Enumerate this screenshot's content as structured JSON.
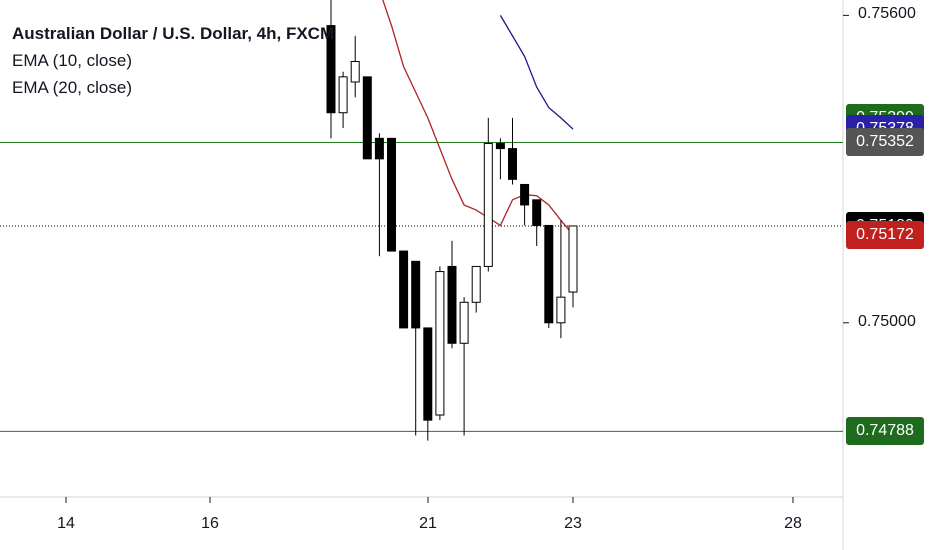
{
  "legend": {
    "title": "Australian Dollar / U.S. Dollar, 4h, FXCM",
    "ema10": "EMA (10, close)",
    "ema20": "EMA (20, close)"
  },
  "chart_data": {
    "type": "candlestick",
    "symbol": "AUD/USD",
    "timeframe": "4h",
    "ylim": [
      0.7466,
      0.7563
    ],
    "y_ticks": [
      "0.75600",
      "0.75000"
    ],
    "x_ticks": [
      "14",
      "16",
      "21",
      "23",
      "28"
    ],
    "candles": [
      {
        "o": 0.7558,
        "h": 0.7568,
        "l": 0.7536,
        "c": 0.7541
      },
      {
        "o": 0.7541,
        "h": 0.7549,
        "l": 0.7538,
        "c": 0.7548
      },
      {
        "o": 0.7547,
        "h": 0.7556,
        "l": 0.7544,
        "c": 0.7551
      },
      {
        "o": 0.7548,
        "h": 0.7548,
        "l": 0.7532,
        "c": 0.7532
      },
      {
        "o": 0.7536,
        "h": 0.7537,
        "l": 0.7513,
        "c": 0.7532
      },
      {
        "o": 0.7536,
        "h": 0.7536,
        "l": 0.7514,
        "c": 0.7514
      },
      {
        "o": 0.7514,
        "h": 0.7514,
        "l": 0.7499,
        "c": 0.7499
      },
      {
        "o": 0.7512,
        "h": 0.7512,
        "l": 0.7478,
        "c": 0.7499
      },
      {
        "o": 0.7499,
        "h": 0.7499,
        "l": 0.7477,
        "c": 0.7481
      },
      {
        "o": 0.7482,
        "h": 0.7511,
        "l": 0.7481,
        "c": 0.751
      },
      {
        "o": 0.7511,
        "h": 0.7516,
        "l": 0.7495,
        "c": 0.7496
      },
      {
        "o": 0.7496,
        "h": 0.7505,
        "l": 0.7478,
        "c": 0.7504
      },
      {
        "o": 0.7504,
        "h": 0.7511,
        "l": 0.7502,
        "c": 0.7511
      },
      {
        "o": 0.7511,
        "h": 0.754,
        "l": 0.751,
        "c": 0.7535
      },
      {
        "o": 0.7535,
        "h": 0.7536,
        "l": 0.7528,
        "c": 0.7534
      },
      {
        "o": 0.7534,
        "h": 0.754,
        "l": 0.7527,
        "c": 0.7528
      },
      {
        "o": 0.7527,
        "h": 0.7527,
        "l": 0.7519,
        "c": 0.7523
      },
      {
        "o": 0.7524,
        "h": 0.7524,
        "l": 0.7515,
        "c": 0.7519
      },
      {
        "o": 0.7519,
        "h": 0.7519,
        "l": 0.7499,
        "c": 0.75
      },
      {
        "o": 0.75,
        "h": 0.752,
        "l": 0.7497,
        "c": 0.7505
      },
      {
        "o": 0.7506,
        "h": 0.7519,
        "l": 0.7503,
        "c": 0.75189
      }
    ],
    "ema10": [
      0.7565,
      0.7558,
      0.755,
      0.7545,
      0.754,
      0.7534,
      0.7528,
      0.7523,
      0.7522,
      0.75205,
      0.7519,
      0.7524,
      0.7525,
      0.75248,
      0.7523,
      0.752,
      0.75172
    ],
    "ema20": [
      0.756,
      0.7556,
      0.7552,
      0.7546,
      0.7542,
      0.754,
      0.75378
    ],
    "hlines": [
      {
        "value": 0.75352,
        "color": "#1e7d1e"
      },
      {
        "value": 0.74788,
        "color": "#1e7d1e"
      }
    ],
    "current_price": 0.75189,
    "colors": {
      "up": "#ffffff",
      "down": "#000000",
      "wick": "#000000",
      "ema10": "#b22222",
      "ema20": "#1a1a8c",
      "hline": "#1e7d1e"
    }
  },
  "price_tags": [
    {
      "label": "0.75399",
      "value": 0.75399,
      "color": "#1e6b1e"
    },
    {
      "label": "0.75378",
      "value": 0.75378,
      "color": "#2b20a8"
    },
    {
      "label": "0.75352",
      "value": 0.75352,
      "color": "#555555"
    },
    {
      "label": "0.75189",
      "value": 0.75189,
      "color": "#000000"
    },
    {
      "label": "0.75172",
      "value": 0.75172,
      "color": "#c0201e"
    },
    {
      "label": "0.74788",
      "value": 0.74788,
      "color": "#1e6b1e"
    }
  ]
}
